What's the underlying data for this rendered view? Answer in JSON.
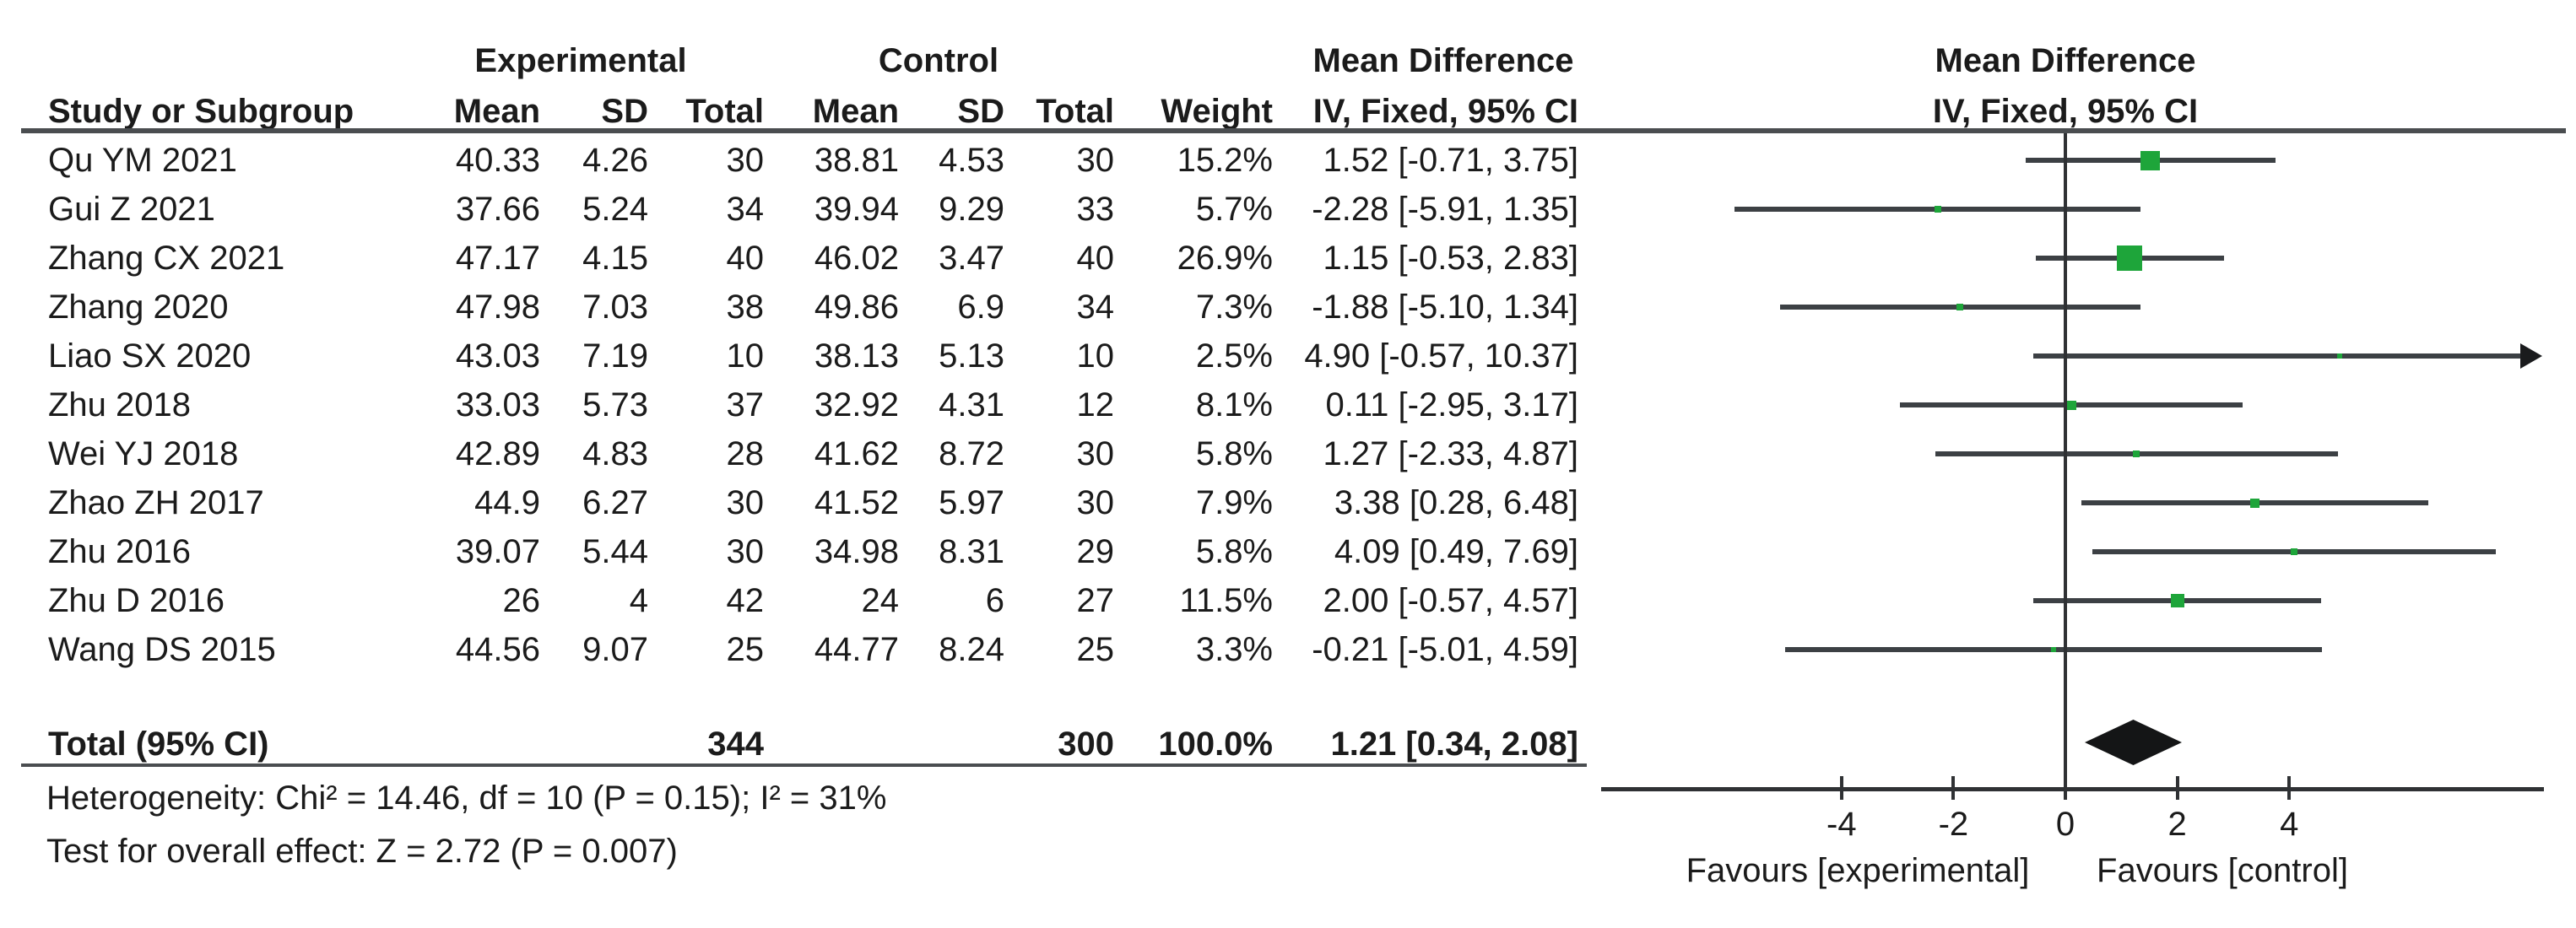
{
  "table": {
    "group_headers": {
      "experimental": "Experimental",
      "control": "Control",
      "mean_difference": "Mean Difference"
    },
    "col_headers": {
      "study": "Study or Subgroup",
      "mean": "Mean",
      "sd": "SD",
      "total": "Total",
      "weight": "Weight",
      "ci": "IV, Fixed, 95% CI"
    }
  },
  "plot": {
    "title_line1": "Mean Difference",
    "title_line2": "IV, Fixed, 95% CI",
    "favours_left": "Favours [experimental]",
    "favours_right": "Favours [control]"
  },
  "totals": {
    "label": "Total (95% CI)",
    "exp_total": "344",
    "ctrl_total": "300",
    "weight": "100.0%",
    "ci_text": "1.21 [0.34, 2.08]"
  },
  "footnotes": {
    "heterogeneity": "Heterogeneity: Chi² = 14.46, df = 10 (P = 0.15); I² = 31%",
    "overall_effect": "Test for overall effect: Z = 2.72 (P = 0.007)"
  },
  "colors": {
    "square_green": "#1ea53a",
    "line_gray": "#3c4044",
    "diamond_black": "#141516"
  },
  "chart_data": {
    "type": "forest",
    "effect_measure": "Mean Difference",
    "model": "IV, Fixed, 95% CI",
    "x_ticks": [
      -4,
      -2,
      0,
      2,
      4
    ],
    "x_range_visible": [
      -8.2,
      8.5
    ],
    "favours": [
      "Favours [experimental]",
      "Favours [control]"
    ],
    "studies": [
      {
        "name": "Qu YM 2021",
        "mean_e": "40.33",
        "sd_e": "4.26",
        "n_e": "30",
        "mean_c": "38.81",
        "sd_c": "4.53",
        "n_c": "30",
        "weight": "15.2%",
        "w": 15.2,
        "md": 1.52,
        "lo": -0.71,
        "hi": 3.75,
        "ci": "1.52 [-0.71, 3.75]"
      },
      {
        "name": "Gui Z 2021",
        "mean_e": "37.66",
        "sd_e": "5.24",
        "n_e": "34",
        "mean_c": "39.94",
        "sd_c": "9.29",
        "n_c": "33",
        "weight": "5.7%",
        "w": 5.7,
        "md": -2.28,
        "lo": -5.91,
        "hi": 1.35,
        "ci": "-2.28 [-5.91, 1.35]"
      },
      {
        "name": "Zhang CX 2021",
        "mean_e": "47.17",
        "sd_e": "4.15",
        "n_e": "40",
        "mean_c": "46.02",
        "sd_c": "3.47",
        "n_c": "40",
        "weight": "26.9%",
        "w": 26.9,
        "md": 1.15,
        "lo": -0.53,
        "hi": 2.83,
        "ci": "1.15 [-0.53, 2.83]"
      },
      {
        "name": "Zhang 2020",
        "mean_e": "47.98",
        "sd_e": "7.03",
        "n_e": "38",
        "mean_c": "49.86",
        "sd_c": "6.9",
        "n_c": "34",
        "weight": "7.3%",
        "w": 7.3,
        "md": -1.88,
        "lo": -5.1,
        "hi": 1.34,
        "ci": "-1.88 [-5.10, 1.34]"
      },
      {
        "name": "Liao SX 2020",
        "mean_e": "43.03",
        "sd_e": "7.19",
        "n_e": "10",
        "mean_c": "38.13",
        "sd_c": "5.13",
        "n_c": "10",
        "weight": "2.5%",
        "w": 2.5,
        "md": 4.9,
        "lo": -0.57,
        "hi": 10.37,
        "ci": "4.90 [-0.57, 10.37]"
      },
      {
        "name": "Zhu 2018",
        "mean_e": "33.03",
        "sd_e": "5.73",
        "n_e": "37",
        "mean_c": "32.92",
        "sd_c": "4.31",
        "n_c": "12",
        "weight": "8.1%",
        "w": 8.1,
        "md": 0.11,
        "lo": -2.95,
        "hi": 3.17,
        "ci": "0.11 [-2.95, 3.17]"
      },
      {
        "name": "Wei YJ 2018",
        "mean_e": "42.89",
        "sd_e": "4.83",
        "n_e": "28",
        "mean_c": "41.62",
        "sd_c": "8.72",
        "n_c": "30",
        "weight": "5.8%",
        "w": 5.8,
        "md": 1.27,
        "lo": -2.33,
        "hi": 4.87,
        "ci": "1.27 [-2.33, 4.87]"
      },
      {
        "name": "Zhao ZH 2017",
        "mean_e": "44.9",
        "sd_e": "6.27",
        "n_e": "30",
        "mean_c": "41.52",
        "sd_c": "5.97",
        "n_c": "30",
        "weight": "7.9%",
        "w": 7.9,
        "md": 3.38,
        "lo": 0.28,
        "hi": 6.48,
        "ci": "3.38 [0.28, 6.48]"
      },
      {
        "name": "Zhu 2016",
        "mean_e": "39.07",
        "sd_e": "5.44",
        "n_e": "30",
        "mean_c": "34.98",
        "sd_c": "8.31",
        "n_c": "29",
        "weight": "5.8%",
        "w": 5.8,
        "md": 4.09,
        "lo": 0.49,
        "hi": 7.69,
        "ci": "4.09 [0.49, 7.69]"
      },
      {
        "name": "Zhu D 2016",
        "mean_e": "26",
        "sd_e": "4",
        "n_e": "42",
        "mean_c": "24",
        "sd_c": "6",
        "n_c": "27",
        "weight": "11.5%",
        "w": 11.5,
        "md": 2.0,
        "lo": -0.57,
        "hi": 4.57,
        "ci": "2.00 [-0.57, 4.57]"
      },
      {
        "name": "Wang DS 2015",
        "mean_e": "44.56",
        "sd_e": "9.07",
        "n_e": "25",
        "mean_c": "44.77",
        "sd_c": "8.24",
        "n_c": "25",
        "weight": "3.3%",
        "w": 3.3,
        "md": -0.21,
        "lo": -5.01,
        "hi": 4.59,
        "ci": "-0.21 [-5.01, 4.59]"
      }
    ],
    "total": {
      "md": 1.21,
      "lo": 0.34,
      "hi": 2.08
    }
  }
}
